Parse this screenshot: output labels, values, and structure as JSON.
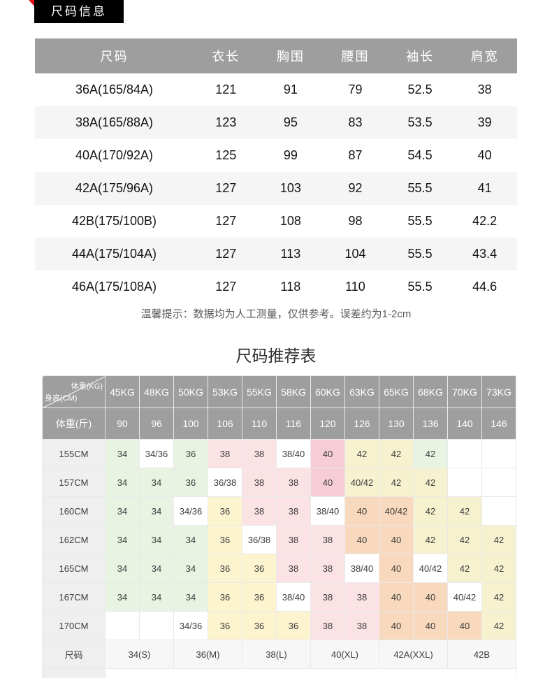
{
  "badge": {
    "label": "尺码信息"
  },
  "size_table": {
    "headers": [
      "尺码",
      "衣长",
      "胸围",
      "腰围",
      "袖长",
      "肩宽"
    ],
    "rows": [
      {
        "size": "36A(165/84A)",
        "values": [
          "121",
          "91",
          "79",
          "52.5",
          "38"
        ]
      },
      {
        "size": "38A(165/88A)",
        "values": [
          "123",
          "95",
          "83",
          "53.5",
          "39"
        ]
      },
      {
        "size": "40A(170/92A)",
        "values": [
          "125",
          "99",
          "87",
          "54.5",
          "40"
        ]
      },
      {
        "size": "42A(175/96A)",
        "values": [
          "127",
          "103",
          "92",
          "55.5",
          "41"
        ]
      },
      {
        "size": "42B(175/100B)",
        "values": [
          "127",
          "108",
          "98",
          "55.5",
          "42.2"
        ]
      },
      {
        "size": "44A(175/104A)",
        "values": [
          "127",
          "113",
          "104",
          "55.5",
          "43.4"
        ]
      },
      {
        "size": "46A(175/108A)",
        "values": [
          "127",
          "118",
          "110",
          "55.5",
          "44.6"
        ]
      }
    ]
  },
  "note": "温馨提示：数据均为人工测量，仅供参考。误差约为1-2cm",
  "recommendation": {
    "title": "尺码推荐表",
    "corner": {
      "top_label": "体重(KG)",
      "bottom_label": "身高(CM)"
    },
    "weight_kg_headers": [
      "45KG",
      "48KG",
      "50KG",
      "53KG",
      "55KG",
      "58KG",
      "60KG",
      "63KG",
      "65KG",
      "68KG",
      "70KG",
      "73KG"
    ],
    "weight_jin_label": "体重(斤)",
    "weight_jin_values": [
      "90",
      "96",
      "100",
      "106",
      "110",
      "116",
      "120",
      "126",
      "130",
      "136",
      "140",
      "146"
    ],
    "rows": [
      {
        "label": "155CM",
        "cells": [
          [
            "34",
            "g"
          ],
          [
            "34/36",
            "w"
          ],
          [
            "36",
            "g"
          ],
          [
            "38",
            "p"
          ],
          [
            "38",
            "p"
          ],
          [
            "38/40",
            "w"
          ],
          [
            "40",
            "P"
          ],
          [
            "42",
            "c"
          ],
          [
            "42",
            "c"
          ],
          [
            "42",
            "g"
          ],
          [
            "",
            ""
          ],
          [
            "",
            ""
          ]
        ]
      },
      {
        "label": "157CM",
        "cells": [
          [
            "34",
            "g"
          ],
          [
            "34",
            "g"
          ],
          [
            "36",
            "g"
          ],
          [
            "36/38",
            "w"
          ],
          [
            "38",
            "p"
          ],
          [
            "38",
            "p"
          ],
          [
            "40",
            "P"
          ],
          [
            "40/42",
            "c"
          ],
          [
            "42",
            "c"
          ],
          [
            "42",
            "c"
          ],
          [
            "",
            ""
          ],
          [
            "",
            ""
          ]
        ]
      },
      {
        "label": "160CM",
        "cells": [
          [
            "34",
            "g"
          ],
          [
            "34",
            "g"
          ],
          [
            "34/36",
            "w"
          ],
          [
            "36",
            "y"
          ],
          [
            "38",
            "p"
          ],
          [
            "38",
            "p"
          ],
          [
            "38/40",
            "w"
          ],
          [
            "40",
            "o"
          ],
          [
            "40/42",
            "o"
          ],
          [
            "42",
            "c"
          ],
          [
            "42",
            "c"
          ],
          [
            "",
            ""
          ]
        ]
      },
      {
        "label": "162CM",
        "cells": [
          [
            "34",
            "g"
          ],
          [
            "34",
            "g"
          ],
          [
            "34",
            "g"
          ],
          [
            "36",
            "y"
          ],
          [
            "36/38",
            "w"
          ],
          [
            "38",
            "p"
          ],
          [
            "38",
            "p"
          ],
          [
            "40",
            "o"
          ],
          [
            "40",
            "o"
          ],
          [
            "42",
            "c"
          ],
          [
            "42",
            "c"
          ],
          [
            "42",
            "c"
          ]
        ]
      },
      {
        "label": "165CM",
        "cells": [
          [
            "34",
            "g"
          ],
          [
            "34",
            "g"
          ],
          [
            "34",
            "g"
          ],
          [
            "36",
            "y"
          ],
          [
            "36",
            "y"
          ],
          [
            "38",
            "p"
          ],
          [
            "38",
            "p"
          ],
          [
            "38/40",
            "w"
          ],
          [
            "40",
            "o"
          ],
          [
            "40/42",
            "w"
          ],
          [
            "42",
            "c"
          ],
          [
            "42",
            "c"
          ]
        ]
      },
      {
        "label": "167CM",
        "cells": [
          [
            "34",
            "g"
          ],
          [
            "34",
            "g"
          ],
          [
            "34",
            "g"
          ],
          [
            "36",
            "y"
          ],
          [
            "36",
            "y"
          ],
          [
            "38/40",
            "w"
          ],
          [
            "38",
            "p"
          ],
          [
            "38",
            "p"
          ],
          [
            "40",
            "o"
          ],
          [
            "40",
            "o"
          ],
          [
            "40/42",
            "w"
          ],
          [
            "42",
            "c"
          ]
        ]
      },
      {
        "label": "170CM",
        "cells": [
          [
            "",
            ""
          ],
          [
            "",
            ""
          ],
          [
            "34/36",
            "w"
          ],
          [
            "36",
            "y"
          ],
          [
            "36",
            "y"
          ],
          [
            "36",
            "y"
          ],
          [
            "38",
            "p"
          ],
          [
            "38",
            "p"
          ],
          [
            "40",
            "o"
          ],
          [
            "40",
            "o"
          ],
          [
            "40",
            "o"
          ],
          [
            "42",
            "c"
          ]
        ]
      }
    ],
    "footer": {
      "label": "尺码",
      "groups": [
        "34(S)",
        "36(M)",
        "38(L)",
        "40(XL)",
        "42A(XXL)",
        "42B"
      ]
    }
  },
  "palette": {
    "g": "#e8f3e2",
    "w": "#ffffff",
    "y": "#fcf4cf",
    "p": "#fbe2e5",
    "P": "#f6ccd6",
    "o": "#f9d9bd",
    "c": "#f6f1cf",
    "": "#ffffff"
  }
}
